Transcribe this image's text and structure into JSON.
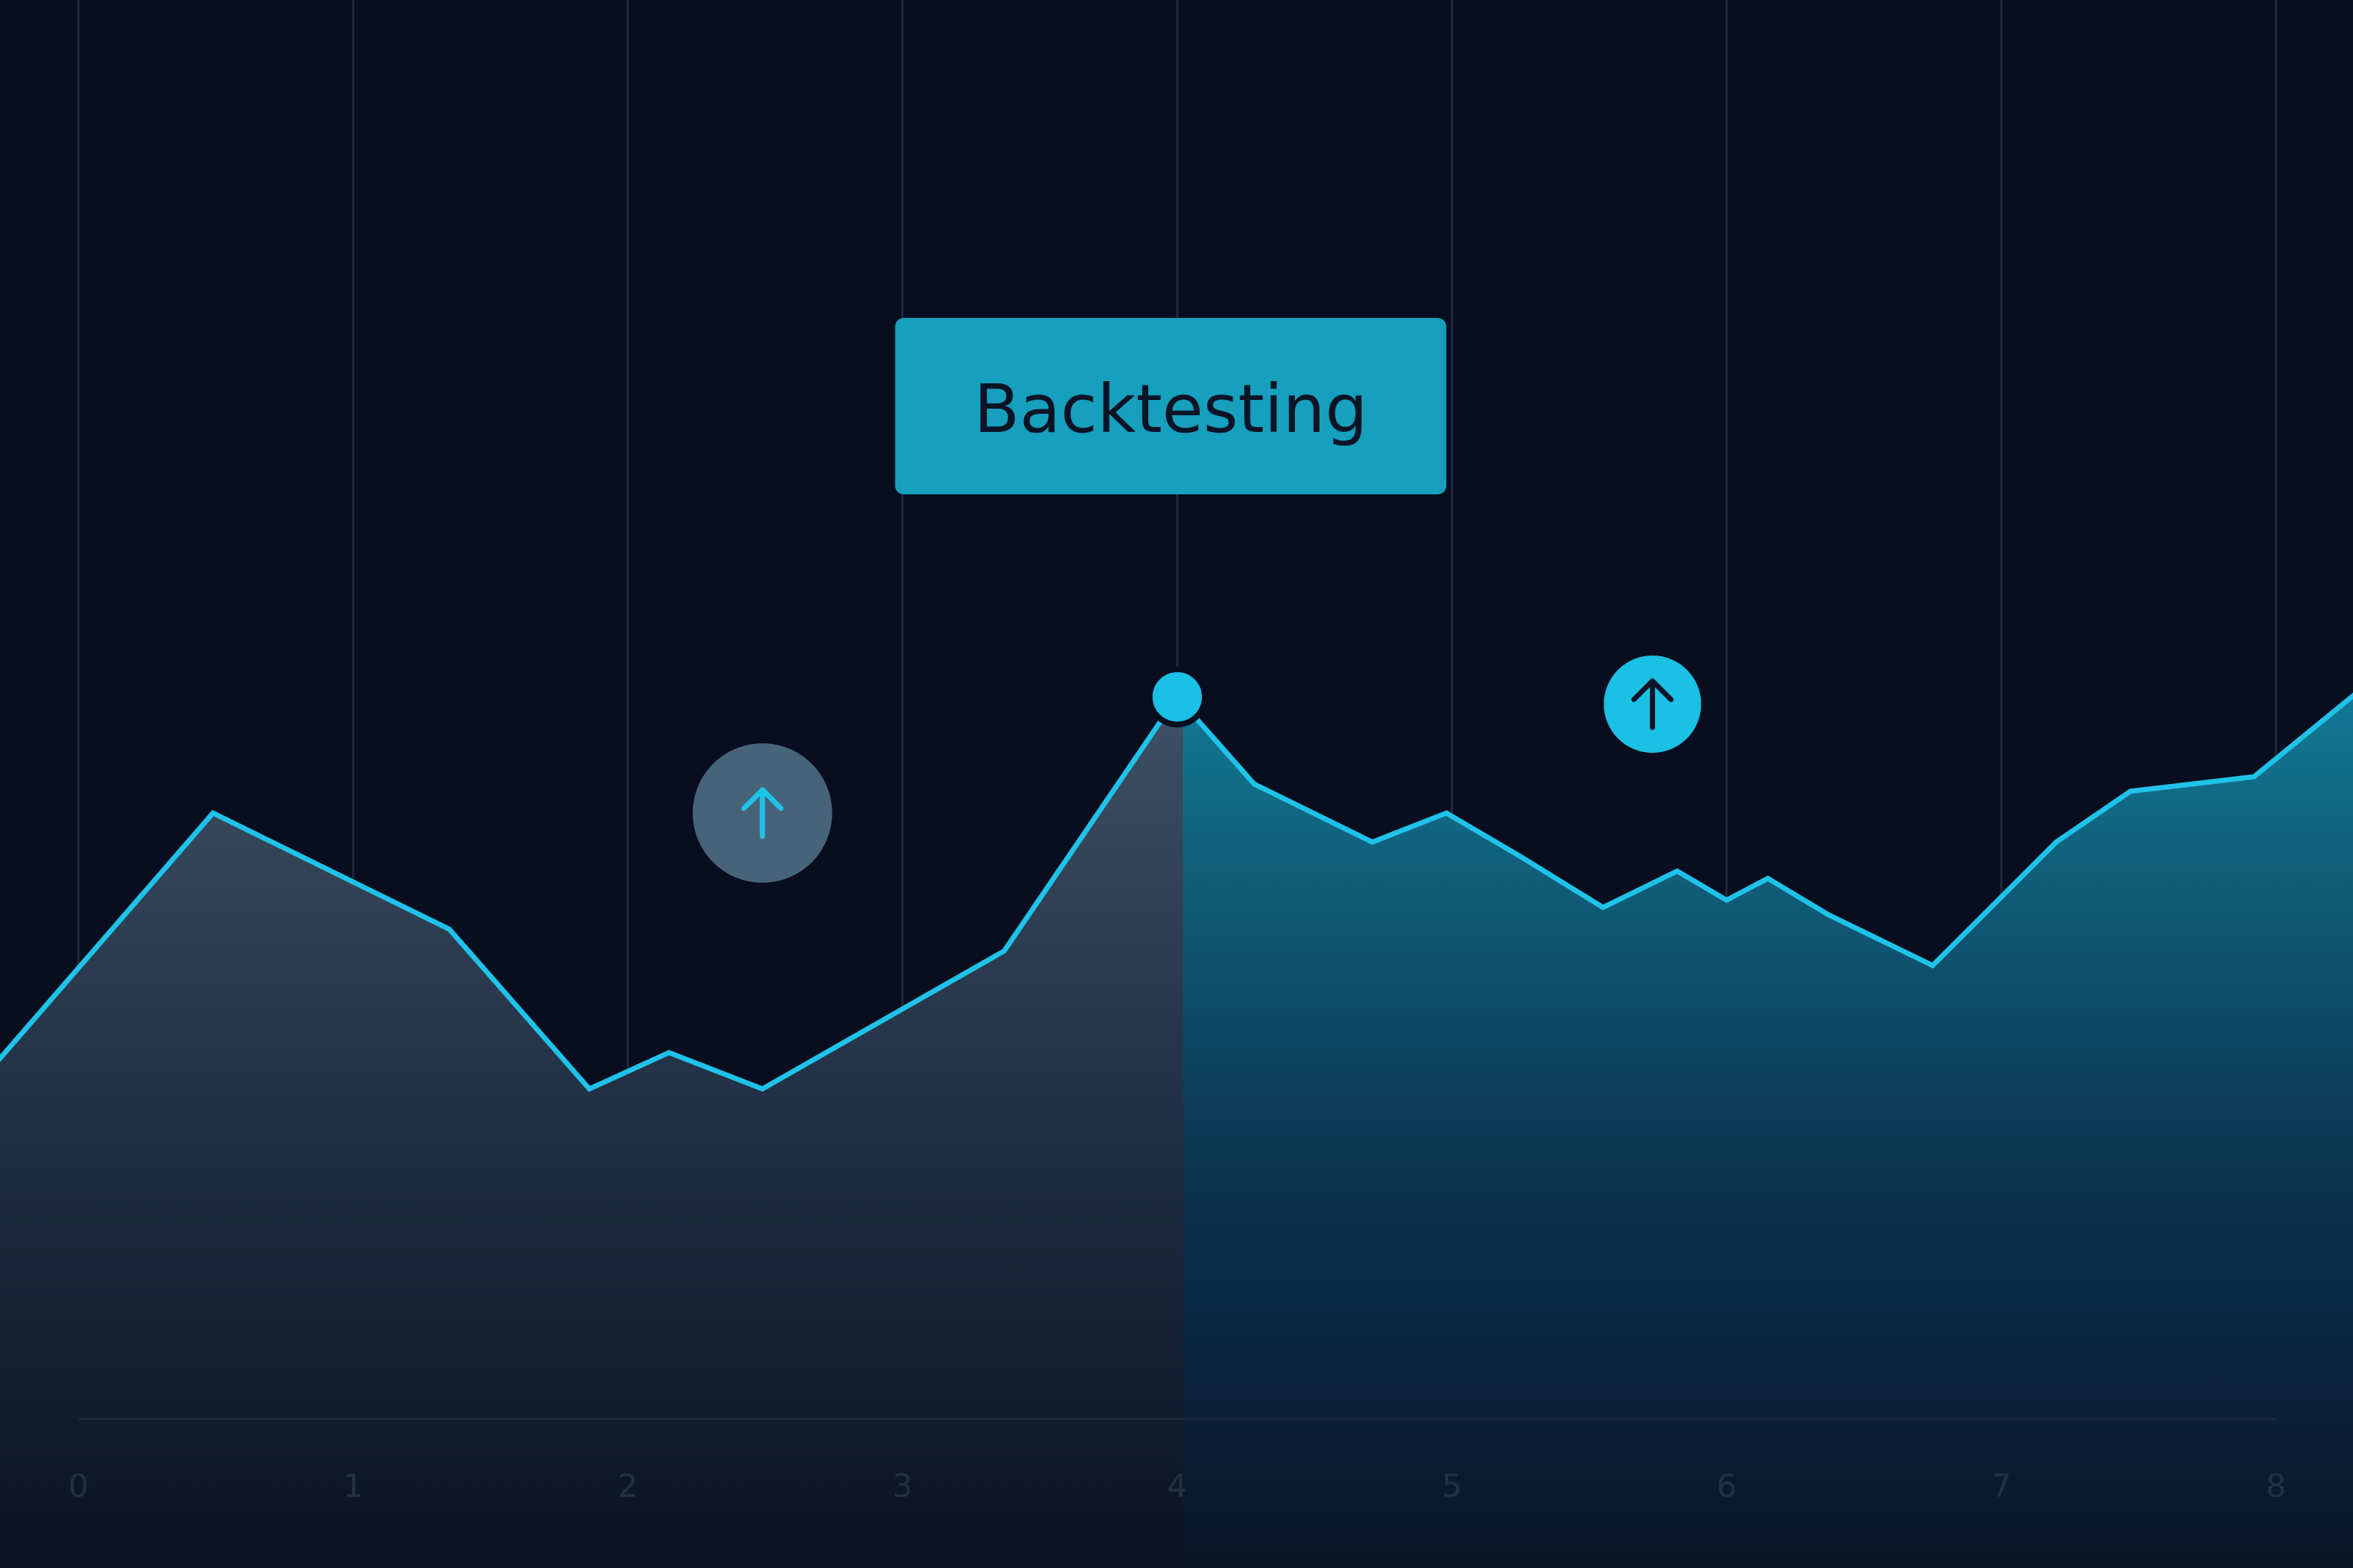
{
  "chart_data": {
    "type": "area",
    "title": "",
    "xlabel": "",
    "ylabel": "",
    "x_ticks": [
      "0",
      "1",
      "2",
      "3",
      "4",
      "5",
      "6",
      "7",
      "8"
    ],
    "xlim": [
      0,
      8
    ],
    "grid": "vertical",
    "series": [
      {
        "values": [
          {
            "x": -0.29,
            "y": 0.68
          },
          {
            "x": 0.49,
            "y": 1.02
          },
          {
            "x": 1.35,
            "y": 0.86
          },
          {
            "x": 1.86,
            "y": 0.64
          },
          {
            "x": 2.15,
            "y": 0.69
          },
          {
            "x": 2.49,
            "y": 0.64
          },
          {
            "x": 3.37,
            "y": 0.83
          },
          {
            "x": 4.0,
            "y": 1.18
          },
          {
            "x": 4.28,
            "y": 1.06
          },
          {
            "x": 4.71,
            "y": 0.98
          },
          {
            "x": 4.98,
            "y": 1.02
          },
          {
            "x": 5.25,
            "y": 0.96
          },
          {
            "x": 5.55,
            "y": 0.89
          },
          {
            "x": 5.82,
            "y": 0.94
          },
          {
            "x": 6.0,
            "y": 0.9
          },
          {
            "x": 6.15,
            "y": 0.93
          },
          {
            "x": 6.37,
            "y": 0.88
          },
          {
            "x": 6.75,
            "y": 0.81
          },
          {
            "x": 7.2,
            "y": 0.98
          },
          {
            "x": 7.47,
            "y": 1.05
          },
          {
            "x": 7.92,
            "y": 1.07
          },
          {
            "x": 8.34,
            "y": 1.2
          }
        ]
      }
    ],
    "highlight_point": {
      "x": 4.0,
      "y": 1.18
    },
    "callout": {
      "label": "Backtesting"
    },
    "up_markers": [
      {
        "x": 2.49,
        "y": 1.02,
        "style": "muted"
      },
      {
        "x": 5.73,
        "y": 1.17,
        "style": "active"
      }
    ]
  },
  "colors": {
    "background": "#080e20",
    "line": "#1fc2e8",
    "grid": "#1b2a3c",
    "callout_bg": "#16a0bd",
    "marker_active": "#1ac1e5",
    "marker_muted": "#47637a",
    "fill_left": "#3d5063",
    "fill_right": "#0f6b86"
  },
  "icons": {
    "up_marker": "arrow-up-icon"
  }
}
